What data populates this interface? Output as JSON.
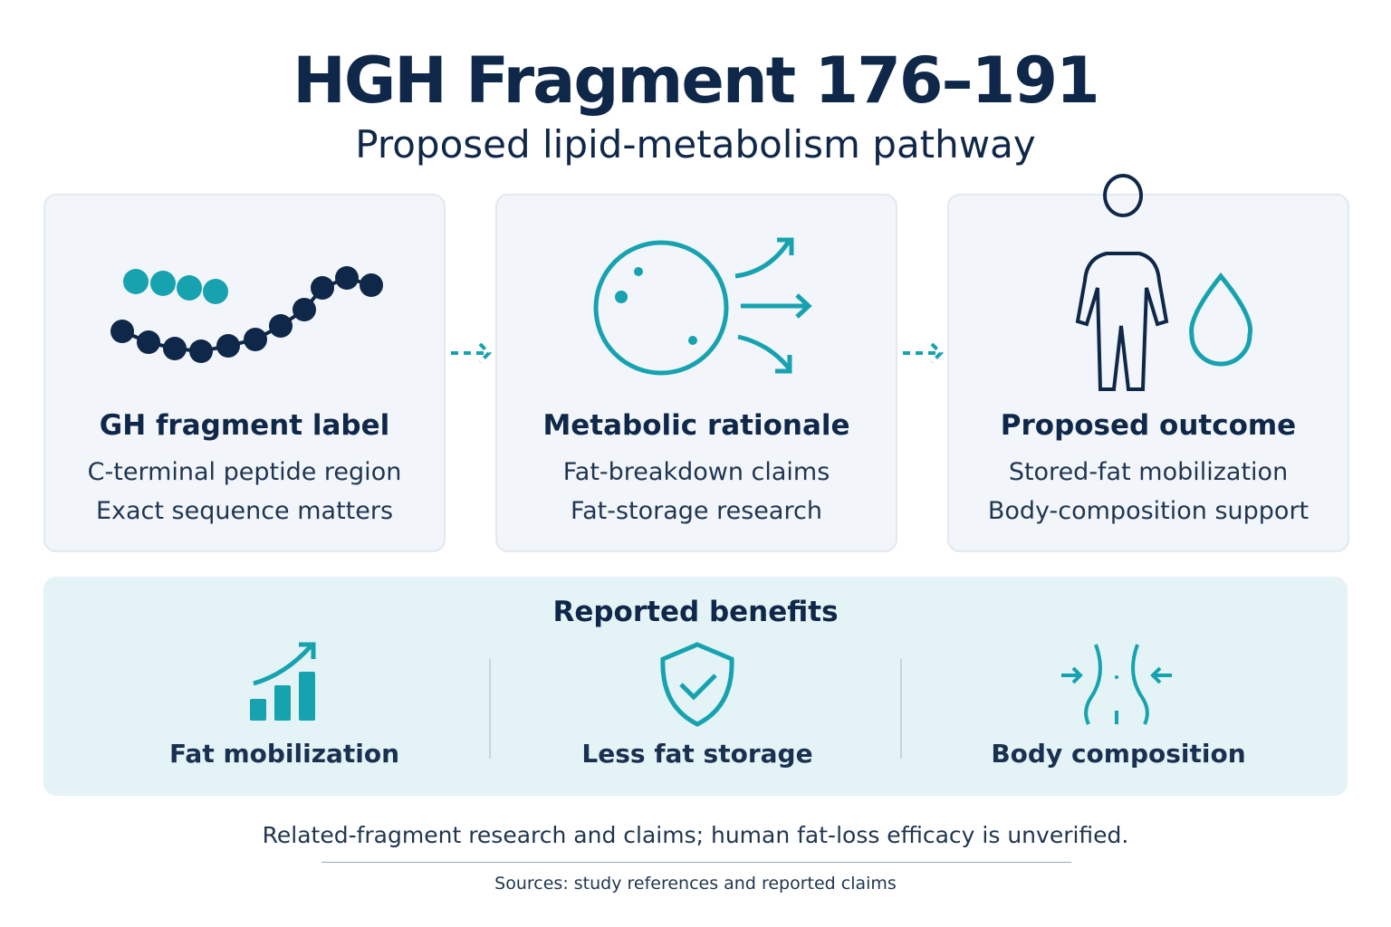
{
  "header": {
    "title": "HGH Fragment 176–191",
    "subtitle": "Proposed lipid-metabolism pathway"
  },
  "cards": [
    {
      "title": "GH fragment label",
      "lines": [
        "C-terminal peptide region",
        "Exact sequence matters"
      ]
    },
    {
      "title": "Metabolic rationale",
      "lines": [
        "Fat-breakdown claims",
        "Fat-storage research"
      ]
    },
    {
      "title": "Proposed outcome",
      "lines": [
        "Stored-fat mobilization",
        "Body-composition support"
      ]
    }
  ],
  "benefits": {
    "title": "Reported benefits",
    "items": [
      "Fat mobilization",
      "Less fat storage",
      "Body composition"
    ]
  },
  "footer": {
    "note": "Related-fragment research and claims; human fat-loss efficacy is unverified.",
    "sources": "Sources: study references and reported claims"
  }
}
